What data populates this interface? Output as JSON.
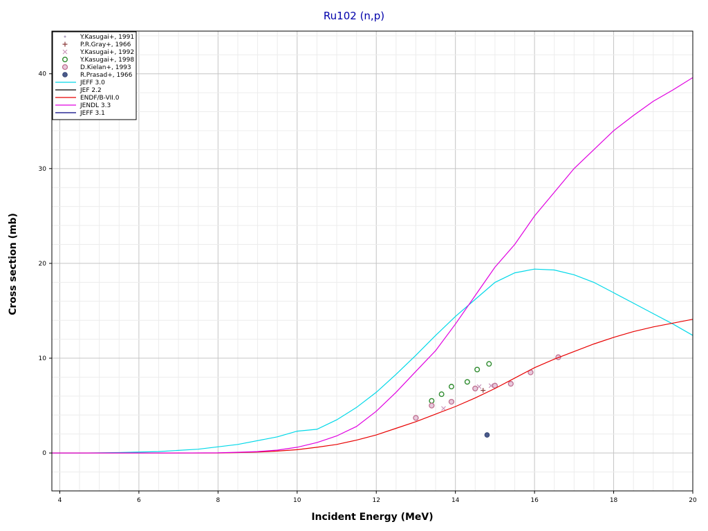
{
  "chart_data": {
    "type": "line",
    "title": "Ru102 (n,p)",
    "xlabel": "Incident Energy (MeV)",
    "ylabel": "Cross section (mb)",
    "xlim": [
      3.8,
      20
    ],
    "ylim": [
      -4,
      44.5
    ],
    "x_ticks": [
      4,
      6,
      8,
      10,
      12,
      14,
      16,
      18,
      20
    ],
    "y_ticks": [
      0,
      10,
      20,
      30,
      40
    ],
    "grid": true,
    "legend_position": "top-left",
    "series": [
      {
        "name": "Y.Kasugai+, 1991",
        "kind": "scatter",
        "marker": "dot",
        "color": "#b0a0c0",
        "points": []
      },
      {
        "name": "P.R.Gray+, 1966",
        "kind": "scatter",
        "marker": "plus",
        "color": "#8b3a3a",
        "points": [
          [
            14.7,
            6.6
          ]
        ]
      },
      {
        "name": "Y.Kasugai+, 1992",
        "kind": "scatter",
        "marker": "cross",
        "color": "#c890b8",
        "points": [
          [
            13.7,
            4.7
          ],
          [
            14.6,
            7.0
          ],
          [
            14.9,
            7.1
          ]
        ]
      },
      {
        "name": "Y.Kasugai+, 1998",
        "kind": "scatter",
        "marker": "open-circle",
        "color": "#2e8b2e",
        "points": [
          [
            13.4,
            5.5
          ],
          [
            13.65,
            6.2
          ],
          [
            13.9,
            7.0
          ],
          [
            14.3,
            7.5
          ],
          [
            14.55,
            8.8
          ],
          [
            14.85,
            9.4
          ]
        ]
      },
      {
        "name": "D.Kielan+, 1993",
        "kind": "scatter",
        "marker": "hatched-circle",
        "color": "#c07090",
        "points": [
          [
            13.0,
            3.7
          ],
          [
            13.4,
            5.0
          ],
          [
            13.9,
            5.4
          ],
          [
            14.5,
            6.8
          ],
          [
            15.0,
            7.1
          ],
          [
            15.4,
            7.3
          ],
          [
            15.9,
            8.5
          ],
          [
            16.6,
            10.1
          ]
        ]
      },
      {
        "name": "R.Prasad+, 1966",
        "kind": "scatter",
        "marker": "filled-circle",
        "color": "#4a5a8a",
        "points": [
          [
            14.8,
            1.9
          ]
        ]
      },
      {
        "name": "JEFF 3.0",
        "kind": "line",
        "color": "#00d8e8",
        "points": [
          [
            3.8,
            0
          ],
          [
            4.5,
            0
          ],
          [
            5.5,
            0.05
          ],
          [
            6.5,
            0.15
          ],
          [
            7.5,
            0.4
          ],
          [
            8.5,
            0.9
          ],
          [
            9.5,
            1.7
          ],
          [
            10.0,
            2.3
          ],
          [
            10.5,
            2.5
          ],
          [
            11.0,
            3.5
          ],
          [
            11.5,
            4.8
          ],
          [
            12.0,
            6.4
          ],
          [
            12.5,
            8.3
          ],
          [
            13.0,
            10.3
          ],
          [
            13.5,
            12.4
          ],
          [
            14.0,
            14.4
          ],
          [
            14.5,
            16.2
          ],
          [
            15.0,
            18.0
          ],
          [
            15.5,
            19.0
          ],
          [
            16.0,
            19.4
          ],
          [
            16.5,
            19.3
          ],
          [
            17.0,
            18.8
          ],
          [
            17.5,
            18.0
          ],
          [
            18.0,
            16.9
          ],
          [
            18.5,
            15.8
          ],
          [
            19.0,
            14.7
          ],
          [
            19.5,
            13.6
          ],
          [
            20.0,
            12.4
          ]
        ]
      },
      {
        "name": "JEF 2.2",
        "kind": "line",
        "color": "#000000",
        "points": []
      },
      {
        "name": "ENDF/B-VII.0",
        "kind": "line",
        "color": "#e80000",
        "points": [
          [
            3.8,
            0
          ],
          [
            4.5,
            0
          ],
          [
            6.0,
            0
          ],
          [
            7.0,
            0
          ],
          [
            8.0,
            0
          ],
          [
            8.5,
            0.05
          ],
          [
            9.0,
            0.1
          ],
          [
            9.5,
            0.2
          ],
          [
            10.0,
            0.35
          ],
          [
            10.5,
            0.6
          ],
          [
            11.0,
            0.9
          ],
          [
            11.5,
            1.35
          ],
          [
            12.0,
            1.9
          ],
          [
            12.5,
            2.6
          ],
          [
            13.0,
            3.3
          ],
          [
            13.5,
            4.1
          ],
          [
            14.0,
            4.9
          ],
          [
            14.5,
            5.8
          ],
          [
            15.0,
            6.8
          ],
          [
            15.5,
            7.9
          ],
          [
            16.0,
            9.0
          ],
          [
            16.5,
            9.9
          ],
          [
            17.0,
            10.7
          ],
          [
            17.5,
            11.5
          ],
          [
            18.0,
            12.2
          ],
          [
            18.5,
            12.8
          ],
          [
            19.0,
            13.3
          ],
          [
            19.5,
            13.7
          ],
          [
            20.0,
            14.1
          ]
        ]
      },
      {
        "name": "JENDL 3.3",
        "kind": "line",
        "color": "#e000e0",
        "points": [
          [
            3.8,
            0
          ],
          [
            4.5,
            0
          ],
          [
            6.0,
            0
          ],
          [
            7.0,
            0
          ],
          [
            8.0,
            0.02
          ],
          [
            8.5,
            0.08
          ],
          [
            9.0,
            0.15
          ],
          [
            9.5,
            0.3
          ],
          [
            10.0,
            0.6
          ],
          [
            10.5,
            1.1
          ],
          [
            11.0,
            1.8
          ],
          [
            11.5,
            2.8
          ],
          [
            12.0,
            4.4
          ],
          [
            12.5,
            6.4
          ],
          [
            13.0,
            8.6
          ],
          [
            13.5,
            10.8
          ],
          [
            14.0,
            13.6
          ],
          [
            14.5,
            16.6
          ],
          [
            15.0,
            19.6
          ],
          [
            15.5,
            22.0
          ],
          [
            16.0,
            25.0
          ],
          [
            16.5,
            27.5
          ],
          [
            17.0,
            30.0
          ],
          [
            17.5,
            32.0
          ],
          [
            18.0,
            34.0
          ],
          [
            18.5,
            35.6
          ],
          [
            19.0,
            37.1
          ],
          [
            19.5,
            38.3
          ],
          [
            20.0,
            39.6
          ]
        ]
      },
      {
        "name": "JEFF 3.1",
        "kind": "line",
        "color": "#000080",
        "points": []
      }
    ]
  }
}
